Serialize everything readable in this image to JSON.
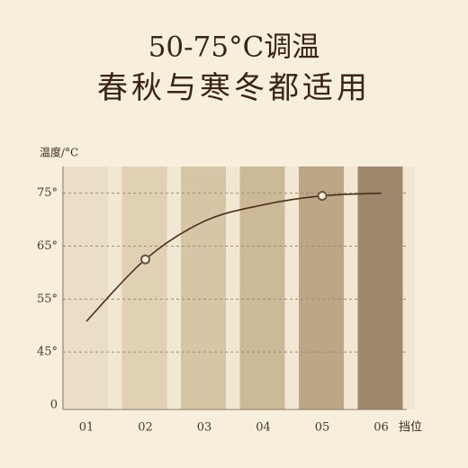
{
  "chart_data": {
    "type": "line",
    "title": "50-75°C调温",
    "subtitle": "春秋与寒冬都适用",
    "y_label": "温度/°C",
    "x_label": "挡位",
    "categories": [
      "01",
      "02",
      "03",
      "04",
      "05",
      "06"
    ],
    "series": [
      {
        "name": "温度",
        "color": "#4a2e1a",
        "values": [
          50.8,
          62.5,
          69.7,
          72.8,
          74.5,
          75
        ]
      }
    ],
    "markers": [
      1,
      4
    ],
    "ylim": [
      0,
      78
    ],
    "axis_break": [
      0,
      35
    ],
    "yticks": [
      {
        "value": 0,
        "label": "0"
      },
      {
        "value": 45,
        "label": "45°"
      },
      {
        "value": 55,
        "label": "55°"
      },
      {
        "value": 65,
        "label": "65°"
      },
      {
        "value": 75,
        "label": "75°"
      }
    ],
    "grid": true
  }
}
